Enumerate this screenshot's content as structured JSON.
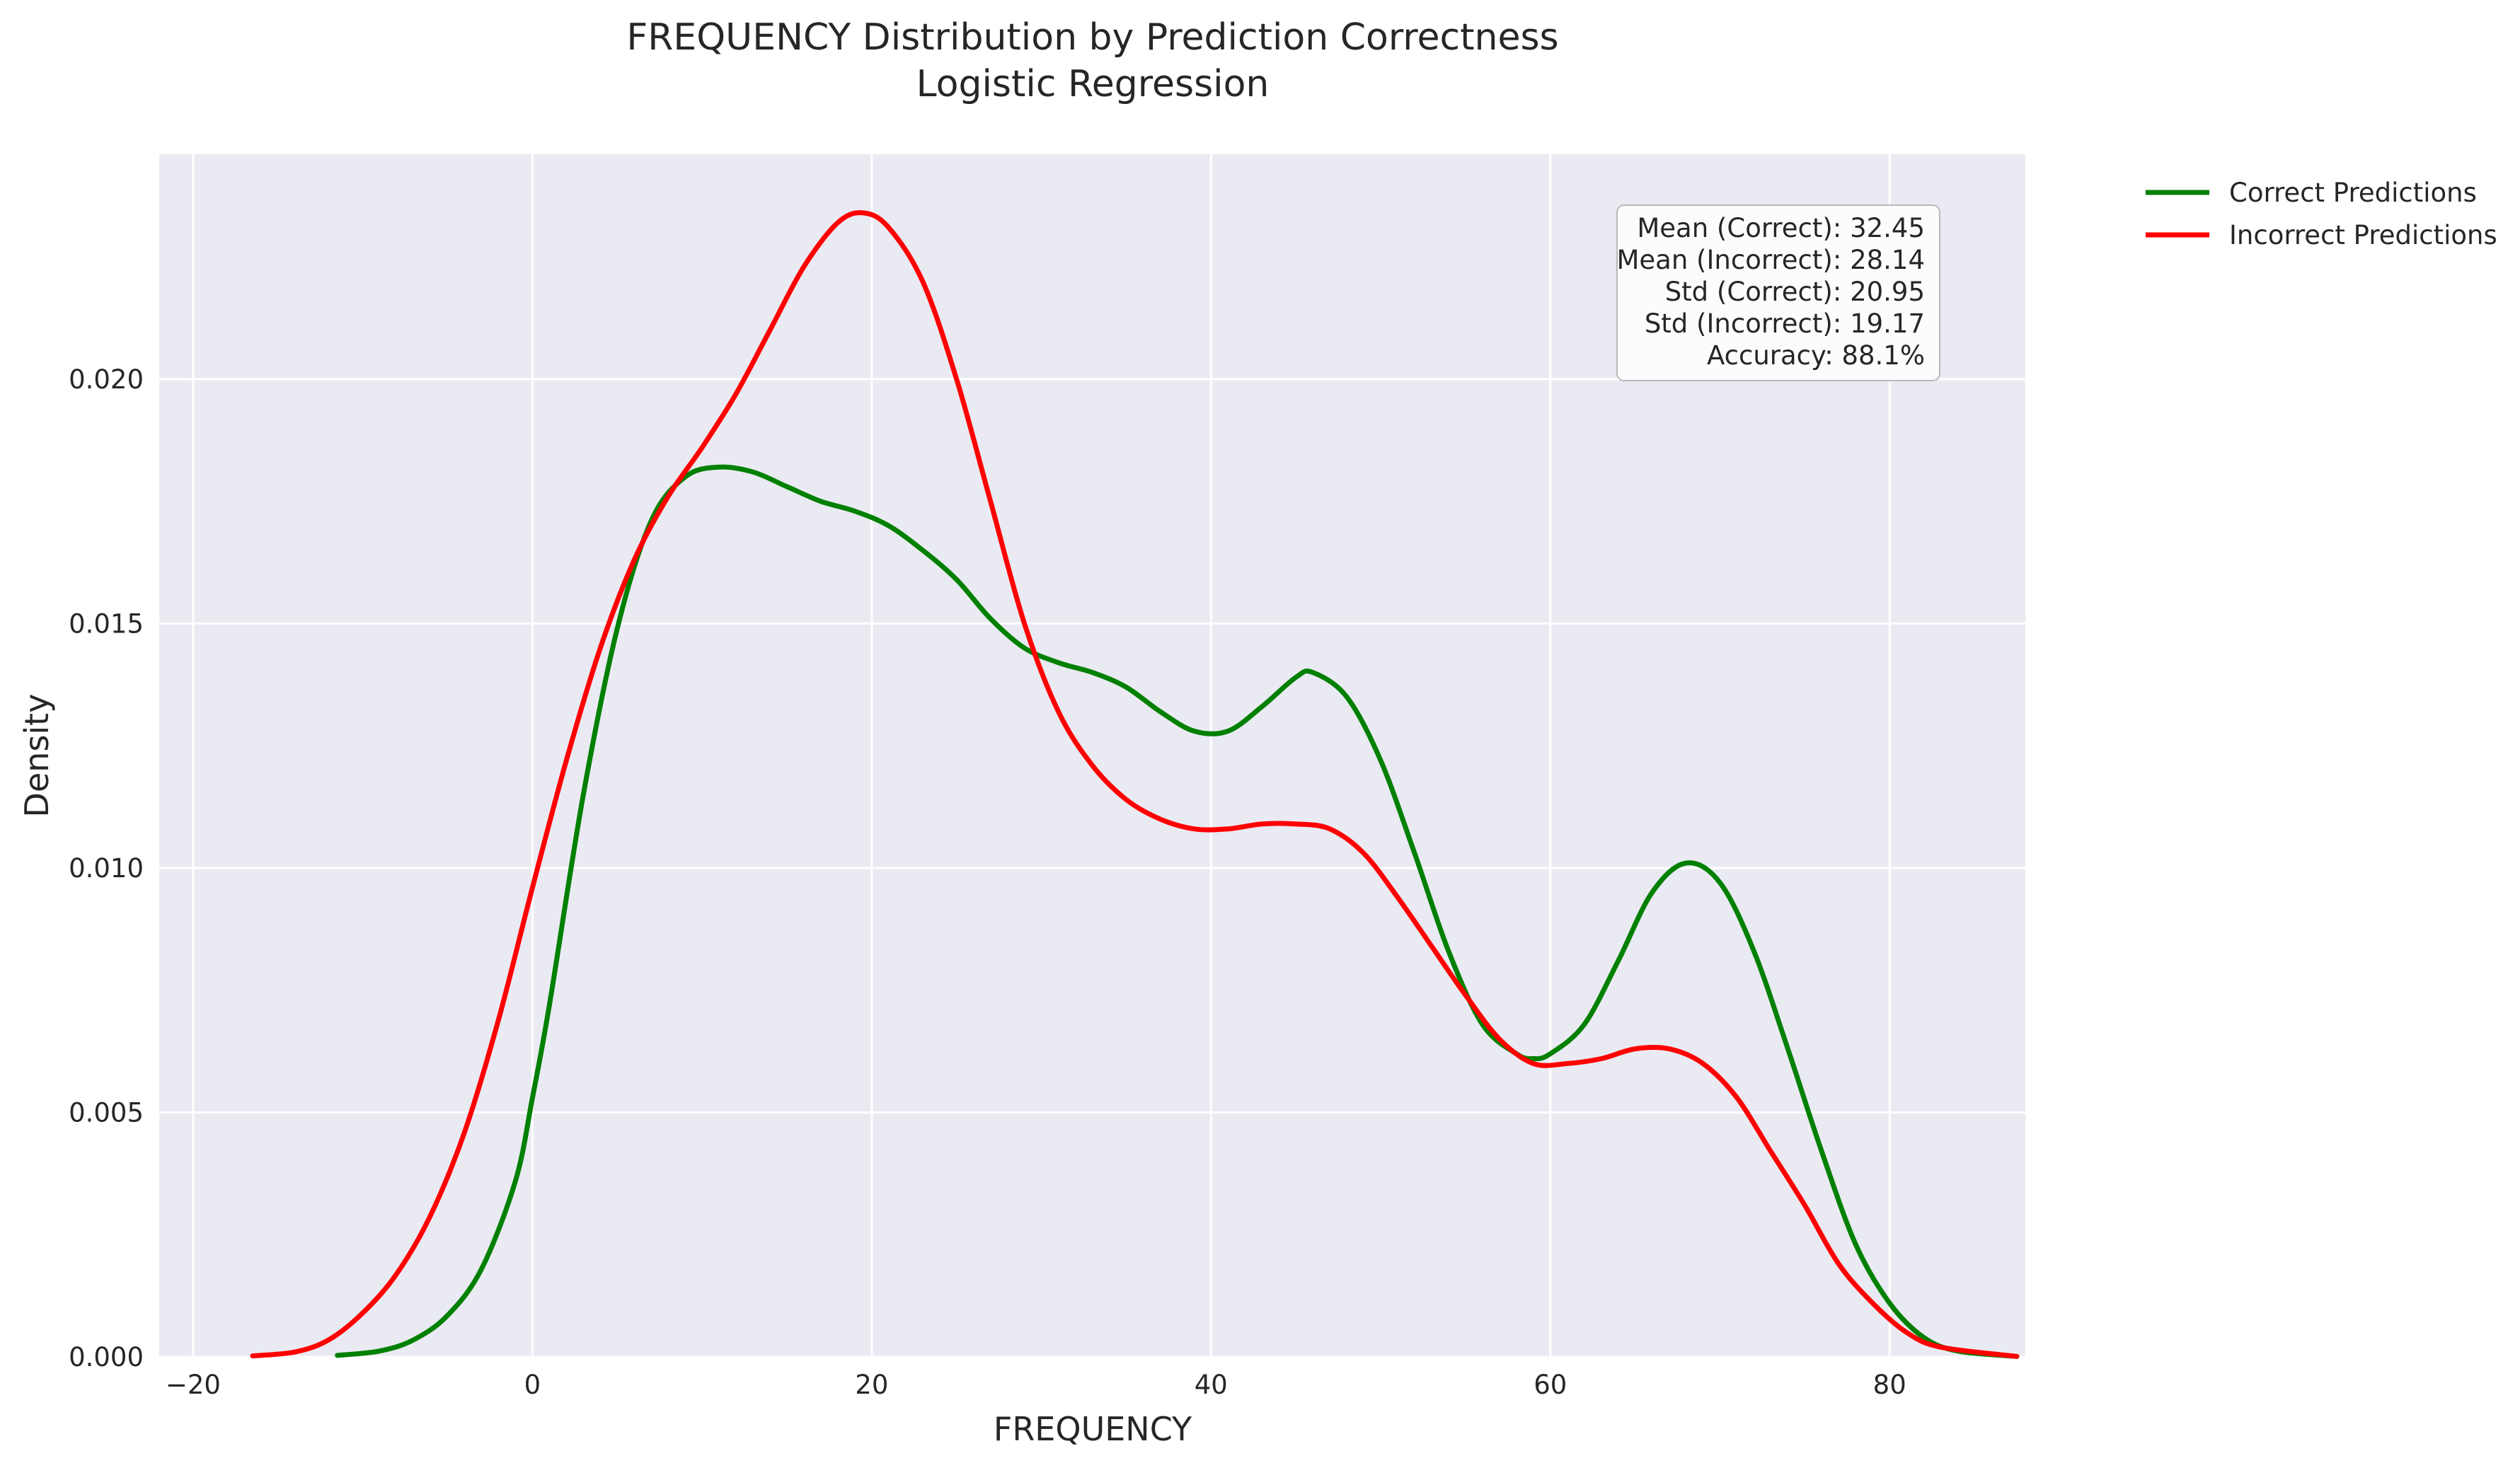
{
  "chart_data": {
    "type": "line",
    "title": "FREQUENCY Distribution by Prediction Correctness",
    "subtitle": "Logistic Regression",
    "xlabel": "FREQUENCY",
    "ylabel": "Density",
    "xlim": [
      -22,
      88
    ],
    "ylim": [
      0,
      0.0246
    ],
    "x_ticks": [
      -20,
      0,
      20,
      40,
      60,
      80
    ],
    "x_tick_labels": [
      "−20",
      "0",
      "20",
      "40",
      "60",
      "80"
    ],
    "y_ticks": [
      0,
      0.005,
      0.01,
      0.015,
      0.02
    ],
    "y_tick_labels": [
      "0.000",
      "0.005",
      "0.010",
      "0.015",
      "0.020"
    ],
    "grid": true,
    "legend_position": "outside top-right",
    "background_color": "#eaeaf2",
    "series": [
      {
        "name": "Correct Predictions",
        "color": "#008000",
        "x": [
          -11.5,
          -9,
          -7,
          -5,
          -3,
          -1,
          0,
          1,
          3,
          5,
          7,
          9,
          11,
          13,
          15,
          17,
          19,
          21,
          23,
          25,
          27,
          29,
          31,
          33,
          35,
          37,
          39,
          41,
          43,
          45,
          46,
          48,
          50,
          52,
          54,
          56,
          58,
          59,
          60,
          62,
          64,
          66,
          68,
          70,
          72,
          74,
          76,
          78,
          80,
          82,
          84,
          87.5
        ],
        "y": [
          3e-05,
          0.00012,
          0.00035,
          0.00085,
          0.0018,
          0.0036,
          0.0053,
          0.0072,
          0.0115,
          0.0149,
          0.0171,
          0.018,
          0.0182,
          0.0181,
          0.0178,
          0.0175,
          0.0173,
          0.017,
          0.0165,
          0.0159,
          0.0151,
          0.0145,
          0.0142,
          0.014,
          0.0137,
          0.0132,
          0.0128,
          0.0128,
          0.0133,
          0.0139,
          0.014,
          0.0135,
          0.0122,
          0.0103,
          0.0083,
          0.0068,
          0.0062,
          0.0061,
          0.0062,
          0.0068,
          0.0081,
          0.0095,
          0.0101,
          0.0097,
          0.0083,
          0.0063,
          0.0042,
          0.0023,
          0.0011,
          0.0004,
          0.00012,
          1e-05
        ]
      },
      {
        "name": "Incorrect Predictions",
        "color": "#ff0000",
        "x": [
          -16.5,
          -14,
          -12,
          -10,
          -8,
          -6,
          -4,
          -2,
          0,
          2,
          4,
          6,
          8,
          10,
          12,
          14,
          16,
          18,
          19.5,
          21,
          23,
          25,
          27,
          29,
          31,
          33,
          35,
          37,
          39,
          41,
          43,
          45,
          47,
          49,
          51,
          53,
          55,
          57,
          59,
          61,
          63,
          65,
          67,
          69,
          71,
          73,
          75,
          77,
          79,
          81,
          83,
          87.5
        ],
        "y": [
          2e-05,
          0.0001,
          0.00035,
          0.0009,
          0.0017,
          0.0029,
          0.0046,
          0.0069,
          0.0096,
          0.0122,
          0.0145,
          0.0163,
          0.0176,
          0.0186,
          0.0197,
          0.021,
          0.0223,
          0.0232,
          0.0234,
          0.0231,
          0.022,
          0.02,
          0.0175,
          0.015,
          0.0132,
          0.0121,
          0.0114,
          0.011,
          0.0108,
          0.0108,
          0.0109,
          0.0109,
          0.0108,
          0.0103,
          0.0094,
          0.0084,
          0.0074,
          0.0065,
          0.006,
          0.006,
          0.0061,
          0.0063,
          0.0063,
          0.006,
          0.0053,
          0.0042,
          0.0031,
          0.0019,
          0.0011,
          0.0005,
          0.0002,
          1e-05
        ]
      }
    ],
    "stats_box": {
      "lines": [
        "Mean (Correct): 32.45",
        "Mean (Incorrect): 28.14",
        "Std (Correct): 20.95",
        "Std (Incorrect): 19.17",
        "Accuracy: 88.1%"
      ],
      "position": "top-right"
    }
  }
}
